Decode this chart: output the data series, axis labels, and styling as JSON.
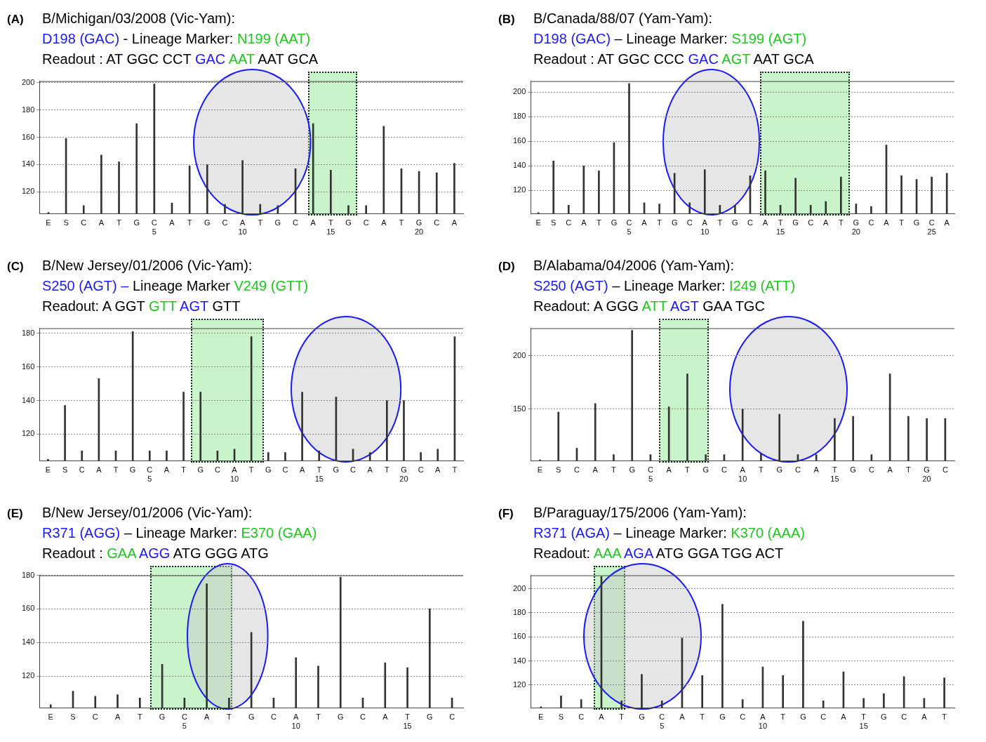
{
  "chart_data": [
    {
      "type": "bar",
      "title": "(A)",
      "subtitle": "B/Michigan/03/2008 (Vic-Yam):",
      "annotations": [
        "D198 (GAC) - Lineage Marker: N199 (AAT)",
        "Readout : AT GGC CCT GAC AAT AAT GCA"
      ],
      "categories": [
        "E",
        "S",
        "C",
        "A",
        "T",
        "G",
        "C\n5",
        "A",
        "T",
        "G",
        "C",
        "A\n10",
        "T",
        "G",
        "C",
        "A",
        "T\n15",
        "G",
        "C",
        "A",
        "T",
        "G\n20",
        "C",
        "A"
      ],
      "values": [
        105,
        159,
        110,
        147,
        142,
        170,
        199,
        112,
        139,
        140,
        111,
        143,
        111,
        110,
        137,
        170,
        136,
        110,
        110,
        168,
        137,
        135,
        134,
        141
      ],
      "color": "#333333",
      "ylim": [
        104,
        201
      ],
      "yticks": [
        120,
        140,
        160,
        180,
        200
      ],
      "grid": "y"
    },
    {
      "type": "bar",
      "title": "(B)",
      "subtitle": "B/Canada/88/07 (Yam-Yam):",
      "annotations": [
        "D198 (GAC) – Lineage Marker: S199 (AGT)",
        "Readout : AT GGC CCC GAC AGT AAT GCA"
      ],
      "categories": [
        "E",
        "S",
        "C",
        "A",
        "T",
        "G",
        "C\n5",
        "A",
        "T",
        "G",
        "C",
        "A\n10",
        "T",
        "G",
        "C",
        "A",
        "T\n15",
        "G",
        "C",
        "A",
        "T",
        "G\n20",
        "C",
        "A",
        "T",
        "G",
        "C\n25",
        "A"
      ],
      "values": [
        102,
        144,
        108,
        140,
        136,
        159,
        207,
        110,
        109,
        134,
        110,
        137,
        108,
        108,
        132,
        136,
        108,
        130,
        108,
        111,
        131,
        109,
        107,
        157,
        132,
        129,
        131,
        134
      ],
      "color": "#333333",
      "ylim": [
        101,
        209
      ],
      "yticks": [
        120,
        140,
        160,
        180,
        200
      ],
      "grid": "y"
    },
    {
      "type": "bar",
      "title": "(C)",
      "subtitle": "B/New Jersey/01/2006 (Vic-Yam):",
      "annotations": [
        "S250 (AGT) – Lineage Marker V249 (GTT)",
        "Readout: A GGT GTT AGT GTT"
      ],
      "categories": [
        "E",
        "S",
        "C",
        "A",
        "T",
        "G",
        "C\n5",
        "A",
        "T",
        "G",
        "C",
        "A\n10",
        "T",
        "G",
        "C",
        "A",
        "T\n15",
        "G",
        "C",
        "A",
        "T",
        "G\n20",
        "C",
        "A",
        "T"
      ],
      "values": [
        105,
        137,
        110,
        153,
        110,
        181,
        110,
        110,
        145,
        145,
        110,
        111,
        178,
        109,
        109,
        145,
        110,
        142,
        111,
        109,
        140,
        140,
        109,
        111,
        178
      ],
      "color": "#333333",
      "ylim": [
        104,
        183
      ],
      "yticks": [
        120,
        140,
        160,
        180
      ],
      "grid": "y"
    },
    {
      "type": "bar",
      "title": "(D)",
      "subtitle": "B/Alabama/04/2006 (Yam-Yam):",
      "annotations": [
        "S250 (AGT) – Lineage Marker: I249 (ATT)",
        "Readout: A GGG ATT AGT GAA TGC"
      ],
      "categories": [
        "E",
        "S",
        "C",
        "A",
        "T",
        "G",
        "C\n5",
        "A",
        "T",
        "G",
        "C",
        "A\n10",
        "T",
        "G",
        "C",
        "A",
        "T\n15",
        "G",
        "C",
        "A",
        "T",
        "G\n20",
        "C"
      ],
      "values": [
        102,
        147,
        113,
        155,
        107,
        224,
        107,
        152,
        183,
        107,
        107,
        150,
        108,
        145,
        107,
        107,
        141,
        143,
        107,
        183,
        143,
        141,
        141
      ],
      "color": "#333333",
      "ylim": [
        101,
        226
      ],
      "yticks": [
        150,
        200
      ],
      "grid": "y"
    },
    {
      "type": "bar",
      "title": "(E)",
      "subtitle": "B/New Jersey/01/2006 (Vic-Yam):",
      "annotations": [
        "R371 (AGG) – Lineage Marker: E370 (GAA)",
        "Readout : GAA AGG ATG GGG ATG"
      ],
      "categories": [
        "E",
        "S",
        "C",
        "A",
        "T",
        "G",
        "C\n5",
        "A",
        "T",
        "G",
        "C",
        "A\n10",
        "T",
        "G",
        "C",
        "A",
        "T\n15",
        "G",
        "C"
      ],
      "values": [
        103,
        111,
        108,
        109,
        107,
        127,
        107,
        175,
        107,
        146,
        107,
        131,
        126,
        179,
        107,
        128,
        125,
        160,
        107
      ],
      "color": "#333333",
      "ylim": [
        101,
        180
      ],
      "yticks": [
        120,
        140,
        160,
        180
      ],
      "grid": "y"
    },
    {
      "type": "bar",
      "title": "(F)",
      "subtitle": "B/Paraguay/175/2006 (Yam-Yam):",
      "annotations": [
        "R371 (AGA) – Lineage Marker: K370 (AAA)",
        "Readout: AAA AGA ATG GGA TGG ACT"
      ],
      "categories": [
        "E",
        "S",
        "C",
        "A",
        "T",
        "G",
        "C\n5",
        "A",
        "T",
        "G",
        "C",
        "A\n10",
        "T",
        "G",
        "C",
        "A",
        "T\n15",
        "G",
        "C",
        "A",
        "T"
      ],
      "values": [
        102,
        111,
        108,
        210,
        107,
        129,
        107,
        159,
        128,
        187,
        108,
        135,
        128,
        173,
        107,
        131,
        109,
        113,
        127,
        109,
        126
      ],
      "color": "#333333",
      "ylim": [
        101,
        211
      ],
      "yticks": [
        120,
        140,
        160,
        180,
        200
      ],
      "grid": "y"
    }
  ]
}
